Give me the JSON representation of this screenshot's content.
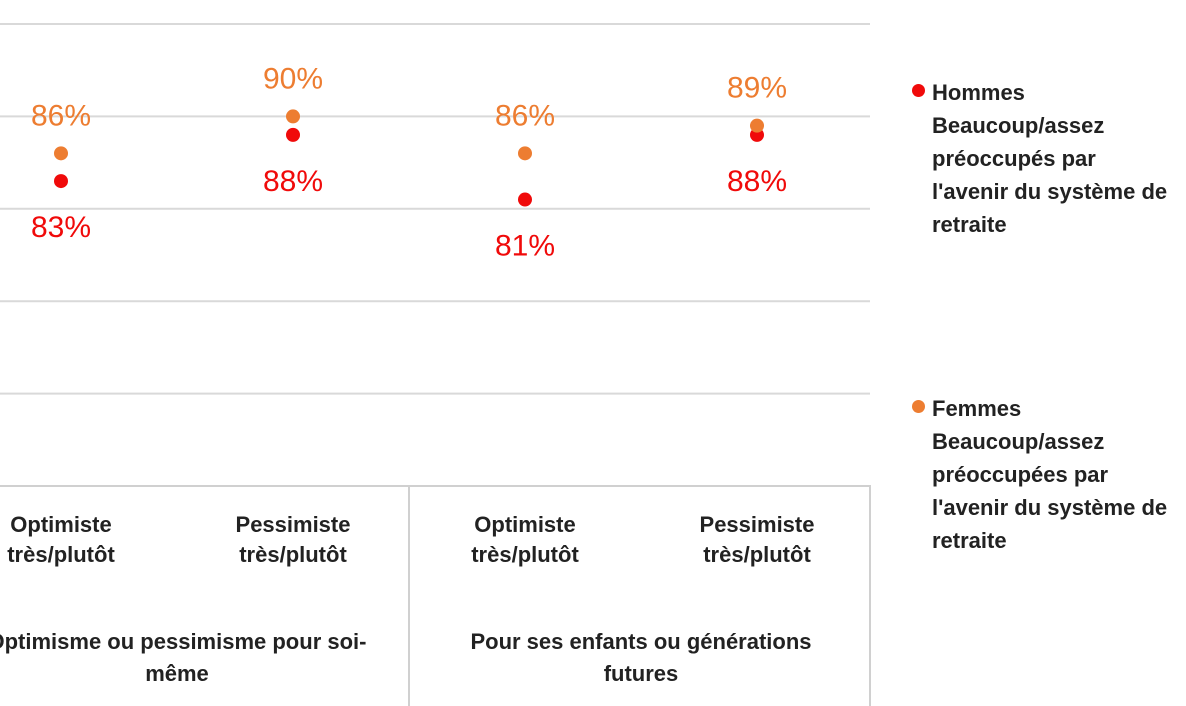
{
  "chart_data": {
    "type": "dot",
    "categories": [
      "Optimiste très/plutôt",
      "Pessimiste très/plutôt",
      "Optimiste très/plutôt",
      "Pessimiste très/plutôt"
    ],
    "groups": [
      "Optimisme ou pessimisme pour soi-même",
      "Pour ses enfants ou générations futures"
    ],
    "series": [
      {
        "name": "Hommes Beaucoup/assez préoccupés par l'avenir du système de retraite",
        "color": "#f00a0a",
        "values": [
          83,
          88,
          81,
          88
        ],
        "value_labels": [
          "83%",
          "88%",
          "81%",
          "88%"
        ]
      },
      {
        "name": "Femmes Beaucoup/assez préoccupées par l'avenir du système de retraite",
        "color": "#ed7d31",
        "values": [
          86,
          90,
          86,
          89
        ],
        "value_labels": [
          "86%",
          "90%",
          "86%",
          "89%"
        ]
      }
    ],
    "ylim": [
      50,
      100
    ],
    "yticks": [
      60,
      70,
      80,
      90,
      100
    ],
    "grid": true,
    "legend": "right"
  }
}
